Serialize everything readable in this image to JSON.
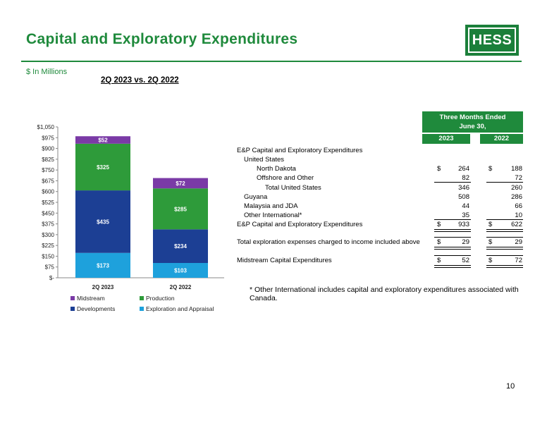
{
  "page": {
    "title": "Capital and Exploratory Expenditures",
    "units": "$ In Millions",
    "subtitle": "2Q 2023 vs. 2Q 2022",
    "logo_text": "HESS",
    "page_number": "10",
    "footnote": "* Other International includes capital and exploratory expenditures associated with Canada.",
    "accent_color": "#1f8a3c"
  },
  "chart_data": {
    "type": "bar",
    "stacked": true,
    "categories": [
      "2Q 2023",
      "2Q 2022"
    ],
    "series": [
      {
        "name": "Exploration and Appraisal",
        "values": [
          173,
          103
        ],
        "labels": [
          "$173",
          "$103"
        ],
        "color": "#1ea1dc"
      },
      {
        "name": "Developments",
        "values": [
          435,
          234
        ],
        "labels": [
          "$435",
          "$234"
        ],
        "color": "#1c3f94"
      },
      {
        "name": "Production",
        "values": [
          325,
          285
        ],
        "labels": [
          "$325",
          "$285"
        ],
        "color": "#2e9b3a"
      },
      {
        "name": "Midstream",
        "values": [
          52,
          72
        ],
        "labels": [
          "$52",
          "$72"
        ],
        "color": "#7a3aa6"
      }
    ],
    "legend_order": [
      "Midstream",
      "Production",
      "Developments",
      "Exploration and Appraisal"
    ],
    "ylim": [
      0,
      1050
    ],
    "yticks": [
      0,
      75,
      150,
      225,
      300,
      375,
      450,
      525,
      600,
      675,
      750,
      825,
      900,
      975,
      1050
    ],
    "ytick_labels": [
      "$-",
      "$75",
      "$150",
      "$225",
      "$300",
      "$375",
      "$450",
      "$525",
      "$600",
      "$675",
      "$750",
      "$825",
      "$900",
      "$975",
      "$1,050"
    ],
    "legend_placement": "bottom",
    "grid": false
  },
  "table": {
    "header": "Three Months Ended June 30,",
    "header_line1": "Three Months Ended",
    "header_line2": "June 30,",
    "years": [
      "2023",
      "2022"
    ],
    "rows": [
      {
        "label": "E&P Capital and Exploratory Expenditures",
        "indent": 0,
        "v2023": "",
        "v2022": "",
        "dollar": false,
        "rule": ""
      },
      {
        "label": "United States",
        "indent": 1,
        "v2023": "",
        "v2022": "",
        "dollar": false,
        "rule": ""
      },
      {
        "label": "North Dakota",
        "indent": 2,
        "v2023": "264",
        "v2022": "188",
        "dollar": true,
        "rule": ""
      },
      {
        "label": "Offshore and Other",
        "indent": 2,
        "v2023": "82",
        "v2022": "72",
        "dollar": false,
        "rule": "single"
      },
      {
        "label": "Total United States",
        "indent": 3,
        "v2023": "346",
        "v2022": "260",
        "dollar": false,
        "rule": ""
      },
      {
        "label": "Guyana",
        "indent": 1,
        "v2023": "508",
        "v2022": "286",
        "dollar": false,
        "rule": ""
      },
      {
        "label": "Malaysia and JDA",
        "indent": 1,
        "v2023": "44",
        "v2022": "66",
        "dollar": false,
        "rule": ""
      },
      {
        "label": "Other International*",
        "indent": 1,
        "v2023": "35",
        "v2022": "10",
        "dollar": false,
        "rule": "single"
      },
      {
        "label": "E&P Capital and Exploratory Expenditures",
        "indent": 0,
        "v2023": "933",
        "v2022": "622",
        "dollar": true,
        "rule": "double"
      },
      {
        "label": "Total exploration expenses charged to income included above",
        "indent": 0,
        "v2023": "29",
        "v2022": "29",
        "dollar": true,
        "rule": "double"
      },
      {
        "label": "Midstream Capital Expenditures",
        "indent": 0,
        "v2023": "52",
        "v2022": "72",
        "dollar": true,
        "rule": "double"
      }
    ],
    "dollar_sign": "$"
  }
}
